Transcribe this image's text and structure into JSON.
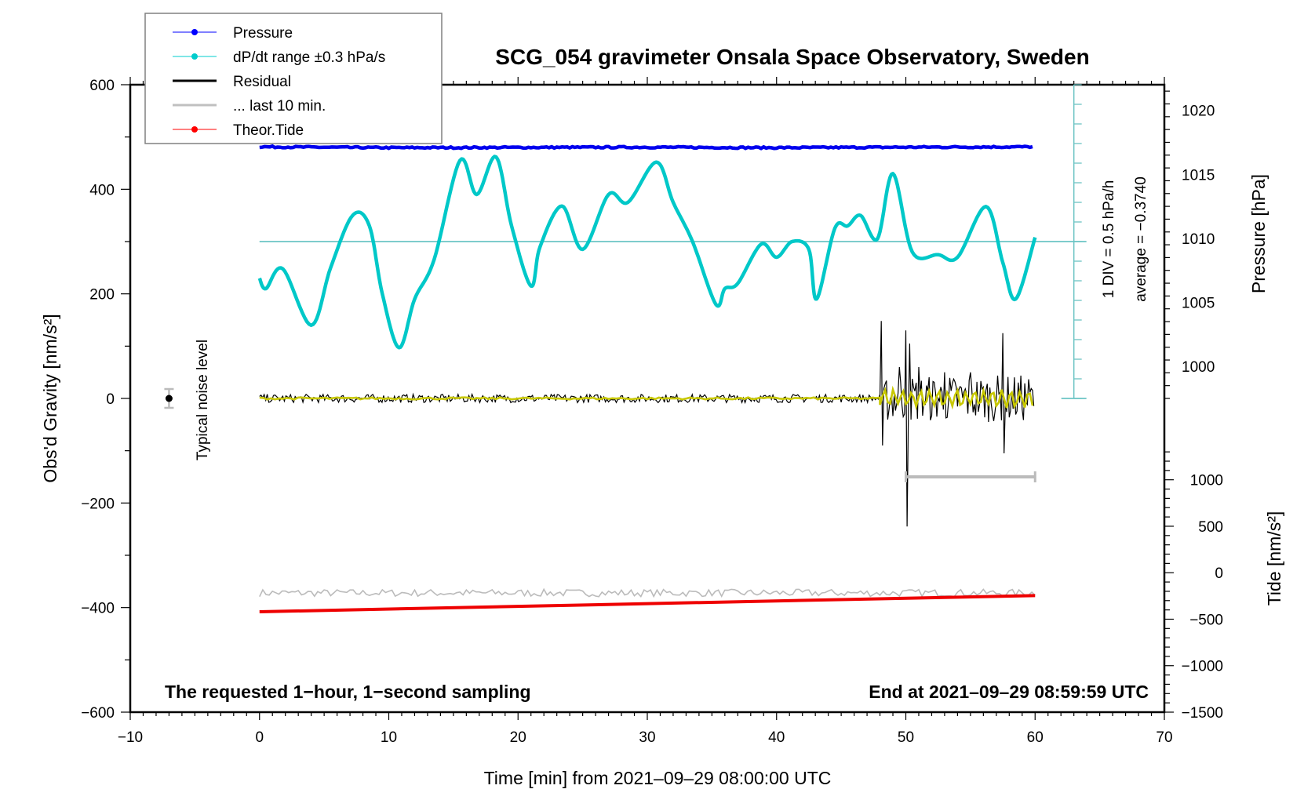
{
  "chart_data": {
    "type": "line",
    "title": "SCG_054 gravimeter Onsala Space Observatory, Sweden",
    "xlabel": "Time [min] from 2021–09–29 08:00:00 UTC",
    "ylabel_left": "Obs'd Gravity [nm/s²]",
    "ylabel_right_top": "Pressure [hPa]",
    "ylabel_right_bottom": "Tide [nm/s²]",
    "xlim": [
      -10,
      70
    ],
    "ylim_left": [
      -600,
      600
    ],
    "x_ticks": [
      "−10",
      "0",
      "10",
      "20",
      "30",
      "40",
      "50",
      "60",
      "70"
    ],
    "x_tick_values": [
      -10,
      0,
      10,
      20,
      30,
      40,
      50,
      60,
      70
    ],
    "y_left_ticks": [
      "600",
      "400",
      "200",
      "0",
      "−200",
      "−400",
      "−600"
    ],
    "y_left_tick_values": [
      600,
      400,
      200,
      0,
      -200,
      -400,
      -600
    ],
    "pressure_axis": {
      "ticks": [
        "1020",
        "1015",
        "1010",
        "1005",
        "1000"
      ],
      "tick_values": [
        1020,
        1015,
        1010,
        1005,
        1000
      ],
      "mapping": {
        "hpa_at_gravity_0": 997.5,
        "hpa_at_gravity_600": 1022
      }
    },
    "tide_axis": {
      "ticks": [
        "1000",
        "500",
        "0",
        "−500",
        "−1000",
        "−1500"
      ],
      "tick_values": [
        1000,
        500,
        0,
        -500,
        -1000,
        -1500
      ],
      "mapping": {
        "tide_at_gravity_neg600": -1500,
        "tide_at_gravity_neg200": 750
      }
    },
    "legend": {
      "placement": "top-left",
      "entries": [
        {
          "label": "Pressure",
          "color": "#0000ff",
          "marker": "dot"
        },
        {
          "label": "dP/dt range ±0.3 hPa/s",
          "color": "#00cccc",
          "marker": "dot"
        },
        {
          "label": "Residual",
          "color": "#000000",
          "marker": "line"
        },
        {
          "label": "... last 10 min.",
          "color": "#c0c0c0",
          "marker": "line"
        },
        {
          "label": "Theor.Tide",
          "color": "#ff0000",
          "marker": "dot"
        }
      ]
    },
    "colors": {
      "pressure": "#0000ee",
      "dpdt": "#00c8c8",
      "dpdt_axis": "#6cc4c4",
      "residual": "#000000",
      "residual_smooth": "#c8c800",
      "last10": "#bbbbbb",
      "tide": "#ee0000",
      "noise": "#000000"
    },
    "series": [
      {
        "name": "Pressure",
        "unit": "hPa",
        "x": [
          0,
          10,
          20,
          30,
          40,
          50,
          60
        ],
        "values": [
          1017.15,
          1017.08,
          1017.1,
          1017.12,
          1017.08,
          1017.12,
          1017.15
        ]
      },
      {
        "name": "dP/dt",
        "unit": "gravity-axis units",
        "x": [
          0,
          0.5,
          1.8,
          4,
          5.5,
          7.2,
          8.5,
          9.5,
          10.8,
          12,
          13.5,
          15.5,
          16.8,
          18.3,
          19.5,
          21,
          21.7,
          23.4,
          25,
          27,
          28.5,
          30.7,
          32,
          33.5,
          35.3,
          36,
          37,
          38.8,
          40,
          41.2,
          42.5,
          43.1,
          44.5,
          45.5,
          46.5,
          47.8,
          49,
          50.5,
          52.5,
          54,
          56.2,
          57.5,
          58.5,
          60
        ],
        "values": [
          230,
          210,
          248,
          140,
          250,
          350,
          330,
          200,
          97,
          190,
          265,
          455,
          390,
          462,
          330,
          215,
          290,
          368,
          285,
          390,
          375,
          452,
          375,
          300,
          180,
          210,
          220,
          295,
          270,
          300,
          285,
          190,
          325,
          330,
          350,
          305,
          430,
          280,
          275,
          270,
          367,
          260,
          190,
          308
        ]
      },
      {
        "name": "Residual",
        "unit": "nm/s²",
        "x": [
          0,
          48,
          48.1,
          48.2,
          49.5,
          50,
          50.1,
          50.3,
          51,
          53,
          55,
          57.5,
          57.6,
          60
        ],
        "values": [
          0,
          0,
          148,
          -90,
          60,
          130,
          -245,
          105,
          60,
          50,
          50,
          125,
          -105,
          -20
        ],
        "noise_amplitude_before_48min": 8
      },
      {
        "name": "Residual smoothed",
        "unit": "nm/s²",
        "x": [
          0,
          48,
          60
        ],
        "values": [
          0,
          0,
          0
        ],
        "amplitude_after_48min": 20
      },
      {
        "name": "... last 10 min.",
        "unit": "nm/s²",
        "x": [
          0,
          60
        ],
        "values": [
          -372,
          -372
        ]
      },
      {
        "name": "Theor.Tide",
        "unit": "nm/s²",
        "x": [
          0,
          60
        ],
        "values": [
          -408,
          -377
        ]
      }
    ],
    "noise_level": {
      "label": "Typical noise level",
      "x": -7,
      "value": 0,
      "error": 18
    },
    "last10_bar": {
      "x_start": 50,
      "x_end": 60,
      "value": -150
    },
    "dpdt_scale": {
      "label": "1 DIV = 0.5 hPa/h",
      "average_label": "average = −0.3740",
      "center_value": 300,
      "x": 63
    },
    "annotations": {
      "bottom_left": "The requested 1−hour, 1−second sampling",
      "bottom_right": "End at 2021–09–29 08:59:59 UTC"
    },
    "grid": false
  }
}
